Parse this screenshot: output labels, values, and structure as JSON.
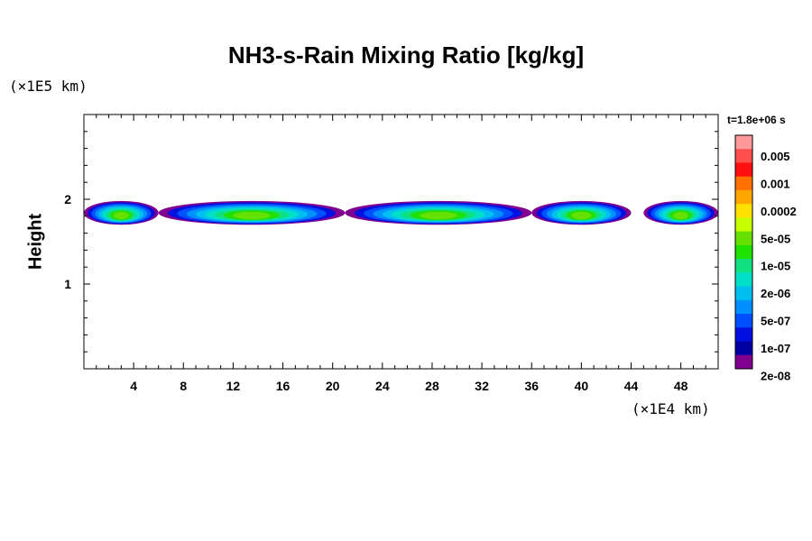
{
  "chart_data": {
    "type": "heatmap",
    "title": "NH3-s-Rain Mixing Ratio [kg/kg]",
    "ylabel": "Height",
    "x_unit": "(×1E4 km)",
    "y_unit": "(×1E5 km)",
    "time_label": "t=1.8e+06 s",
    "xlim": [
      0,
      51
    ],
    "ylim": [
      0,
      3
    ],
    "x_ticks": [
      "4",
      "8",
      "12",
      "16",
      "20",
      "24",
      "28",
      "32",
      "36",
      "40",
      "44",
      "48"
    ],
    "x_tick_values": [
      4,
      8,
      12,
      16,
      20,
      24,
      28,
      32,
      36,
      40,
      44,
      48
    ],
    "y_ticks": [
      "1",
      "2"
    ],
    "y_tick_values": [
      1,
      2
    ],
    "legend": {
      "labels": [
        "0.005",
        "0.001",
        "0.0002",
        "5e-05",
        "1e-05",
        "2e-06",
        "5e-07",
        "1e-07",
        "2e-08"
      ],
      "colors": [
        "#ff9a9a",
        "#ff5050",
        "#ff1010",
        "#ff7000",
        "#ffa500",
        "#ffe000",
        "#c8ff00",
        "#66e000",
        "#20e000",
        "#10e080",
        "#00e0c8",
        "#00c0f0",
        "#0090ff",
        "#0050ff",
        "#0010e0",
        "#0000a0",
        "#800090"
      ]
    },
    "cloud_band": {
      "y_bottom": 1.7,
      "y_top": 1.98,
      "x_segments": [
        [
          0,
          6
        ],
        [
          6,
          21
        ],
        [
          21,
          36
        ],
        [
          36,
          44
        ],
        [
          45,
          51
        ]
      ]
    }
  }
}
